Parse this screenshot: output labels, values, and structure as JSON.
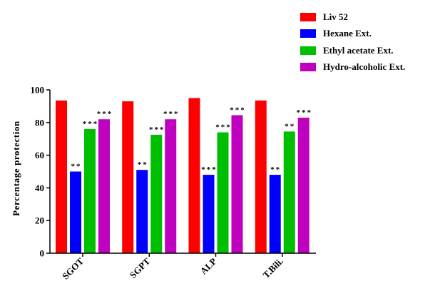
{
  "chart_data": {
    "type": "bar",
    "title": "",
    "xlabel": "",
    "ylabel": "Percentage protection",
    "ylim": [
      0,
      100
    ],
    "yticks": [
      "0",
      "20",
      "40",
      "60",
      "80",
      "100"
    ],
    "categories": [
      "SGOT",
      "SGPT",
      "ALP",
      "T.Bili."
    ],
    "series": [
      {
        "name": "Liv 52",
        "color": "#ff0000",
        "values": [
          93.5,
          93,
          95,
          93.5
        ],
        "significance": [
          "",
          "",
          "",
          ""
        ]
      },
      {
        "name": "Hexane Ext.",
        "color": "#0000ff",
        "values": [
          50,
          51,
          48,
          48
        ],
        "significance": [
          "**",
          "**",
          "***",
          "**"
        ]
      },
      {
        "name": "Ethyl acetate Ext.",
        "color": "#00bf00",
        "values": [
          76,
          72.5,
          74,
          74.5
        ],
        "significance": [
          "***",
          "***",
          "***",
          "**"
        ]
      },
      {
        "name": "Hydro-alcoholic Ext.",
        "color": "#bf00bf",
        "values": [
          82,
          82,
          84.5,
          83
        ],
        "significance": [
          "***",
          "***",
          "***",
          "***"
        ]
      }
    ],
    "legend_position": "top-right",
    "grid": false
  }
}
